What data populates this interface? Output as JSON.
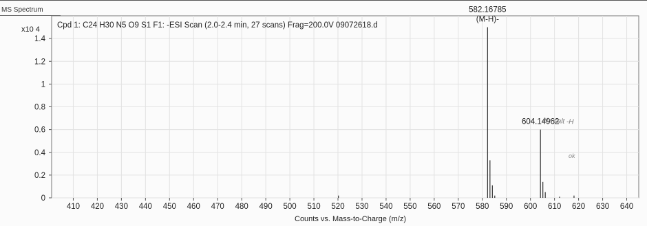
{
  "window_title": "MS Spectrum",
  "chart_data": {
    "type": "bar",
    "title": "Cpd 1: C24 H30 N5 O9 S1 F1: -ESI Scan (2.0-2.4 min, 27 scans) Frag=200.0V 09072618.d",
    "xlabel": "Counts vs. Mass-to-Charge (m/z)",
    "ylabel": "",
    "y_multiplier_label": "x10 4",
    "xlim": [
      401,
      645
    ],
    "ylim": [
      0,
      1.6
    ],
    "x_ticks": [
      410,
      420,
      430,
      440,
      450,
      460,
      470,
      480,
      490,
      500,
      510,
      520,
      530,
      540,
      550,
      560,
      570,
      580,
      590,
      600,
      610,
      620,
      630,
      640
    ],
    "y_ticks": [
      0,
      0.2,
      0.4,
      0.6,
      0.8,
      1,
      1.2,
      1.4
    ],
    "grid": true,
    "peaks": [
      {
        "mz": 520.2,
        "intensity": 0.02
      },
      {
        "mz": 582.16785,
        "intensity": 1.5
      },
      {
        "mz": 583.17,
        "intensity": 0.33
      },
      {
        "mz": 584.17,
        "intensity": 0.11
      },
      {
        "mz": 585.16,
        "intensity": 0.02
      },
      {
        "mz": 604.14962,
        "intensity": 0.6
      },
      {
        "mz": 605.15,
        "intensity": 0.14
      },
      {
        "mz": 606.15,
        "intensity": 0.05
      },
      {
        "mz": 612.1,
        "intensity": 0.01
      },
      {
        "mz": 618.1,
        "intensity": 0.02
      }
    ],
    "peak_labels": [
      {
        "mz": 582.16785,
        "intensity": 1.5,
        "lines": [
          "582.16785",
          "(M-H)-"
        ]
      },
      {
        "mz": 604.14962,
        "intensity": 0.6,
        "lines": [
          "604.14962"
        ]
      }
    ],
    "handwritten_notes": [
      "Na salt -H",
      "ok"
    ]
  }
}
